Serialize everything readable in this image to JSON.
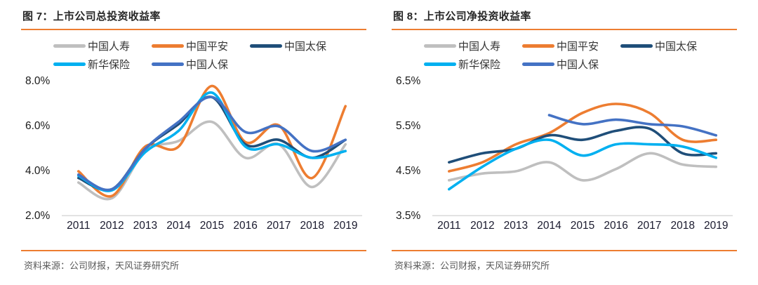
{
  "colors": {
    "accent": "#ED7D31",
    "gridline": "#D9D9D9",
    "title_text": "#262626",
    "axis_text": "#1a1a1a",
    "source_text": "#595959"
  },
  "chart_data": [
    {
      "type": "line",
      "title": "图 7：上市公司总投资收益率",
      "source": "资料来源：公司财报，天风证券研究所",
      "x": [
        "2011",
        "2012",
        "2013",
        "2014",
        "2015",
        "2016",
        "2017",
        "2018",
        "2019"
      ],
      "ylim": [
        2.0,
        8.0
      ],
      "yticks": [
        "8.0%",
        "6.0%",
        "4.0%",
        "2.0%"
      ],
      "ytick_values": [
        8.0,
        6.0,
        4.0,
        2.0
      ],
      "unit": "percent",
      "grid": "bottom-line-only",
      "legend_position": "top",
      "line_style": "smooth",
      "series": [
        {
          "name": "中国人寿",
          "color": "#BFBFBF",
          "values": [
            3.5,
            2.8,
            4.9,
            5.35,
            6.2,
            4.6,
            5.2,
            3.3,
            5.2
          ]
        },
        {
          "name": "中国平安",
          "color": "#ED7D31",
          "values": [
            4.0,
            2.9,
            5.1,
            5.1,
            7.8,
            5.3,
            6.05,
            3.7,
            6.9
          ]
        },
        {
          "name": "中国太保",
          "color": "#1F4E79",
          "values": [
            3.7,
            3.2,
            5.0,
            6.1,
            7.3,
            5.2,
            5.4,
            4.6,
            5.4
          ]
        },
        {
          "name": "新华保险",
          "color": "#00B0F0",
          "values": [
            3.8,
            3.15,
            4.85,
            5.8,
            7.5,
            5.1,
            5.2,
            4.6,
            4.9
          ]
        },
        {
          "name": "中国人保",
          "color": "#4472C4",
          "values": [
            3.85,
            3.2,
            5.0,
            6.2,
            7.3,
            5.75,
            6.0,
            4.9,
            5.4
          ]
        }
      ]
    },
    {
      "type": "line",
      "title": "图 8：上市公司净投资收益率",
      "source": "资料来源：公司财报，天风证券研究所",
      "x": [
        "2011",
        "2012",
        "2013",
        "2014",
        "2015",
        "2016",
        "2017",
        "2018",
        "2019"
      ],
      "ylim": [
        3.5,
        6.5
      ],
      "yticks": [
        "6.5%",
        "5.5%",
        "4.5%",
        "3.5%"
      ],
      "ytick_values": [
        6.5,
        5.5,
        4.5,
        3.5
      ],
      "unit": "percent",
      "grid": "bottom-line-only",
      "legend_position": "top",
      "line_style": "smooth",
      "series": [
        {
          "name": "中国人寿",
          "color": "#BFBFBF",
          "values": [
            4.3,
            4.45,
            4.5,
            4.7,
            4.3,
            4.55,
            4.9,
            4.65,
            4.6
          ]
        },
        {
          "name": "中国平安",
          "color": "#ED7D31",
          "values": [
            4.5,
            4.7,
            5.1,
            5.35,
            5.8,
            6.0,
            5.8,
            5.2,
            5.2
          ]
        },
        {
          "name": "中国太保",
          "color": "#1F4E79",
          "values": [
            4.7,
            4.9,
            5.0,
            5.3,
            5.2,
            5.4,
            5.45,
            4.9,
            4.9
          ]
        },
        {
          "name": "新华保险",
          "color": "#00B0F0",
          "values": [
            4.1,
            4.6,
            5.0,
            5.2,
            4.85,
            5.1,
            5.1,
            5.05,
            4.8
          ]
        },
        {
          "name": "中国人保",
          "color": "#4472C4",
          "values": [
            null,
            null,
            null,
            5.75,
            5.55,
            5.65,
            5.55,
            5.5,
            5.3
          ]
        }
      ]
    }
  ]
}
